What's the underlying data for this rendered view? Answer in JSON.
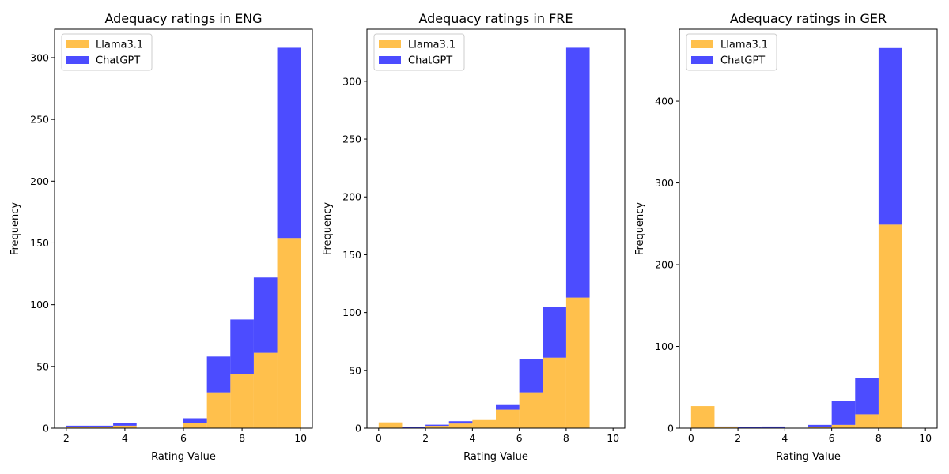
{
  "colors": {
    "llama": "#ffa500",
    "chatgpt": "#0000ff",
    "legend_border": "#cccccc"
  },
  "chart_data": [
    {
      "type": "bar",
      "title": "Adequacy ratings in ENG",
      "xlabel": "Rating Value",
      "ylabel": "Frequency",
      "xlim": [
        1.6,
        10.4
      ],
      "ylim": [
        0,
        323
      ],
      "xticks": [
        2,
        4,
        6,
        8,
        10
      ],
      "yticks": [
        0,
        50,
        100,
        150,
        200,
        250,
        300
      ],
      "bin_edges": [
        2.0,
        2.8,
        3.6,
        4.4,
        5.2,
        6.0,
        6.8,
        7.6,
        8.4,
        9.2,
        10.0
      ],
      "legend_position": "upper left",
      "series": [
        {
          "name": "Llama3.1",
          "color": "#ffa500",
          "values": [
            1,
            1,
            2,
            0,
            0,
            4,
            29,
            44,
            61,
            154
          ]
        },
        {
          "name": "ChatGPT",
          "color": "#0000ff",
          "values": [
            1,
            1,
            2,
            0,
            0,
            4,
            29,
            44,
            61,
            154
          ]
        }
      ]
    },
    {
      "type": "bar",
      "title": "Adequacy ratings in FRE",
      "xlabel": "Rating Value",
      "ylabel": "Frequency",
      "xlim": [
        -0.5,
        10.5
      ],
      "ylim": [
        0,
        345
      ],
      "xticks": [
        0,
        2,
        4,
        6,
        8,
        10
      ],
      "yticks": [
        0,
        50,
        100,
        150,
        200,
        250,
        300
      ],
      "bin_edges": [
        0,
        1,
        2,
        3,
        4,
        5,
        6,
        7,
        8,
        9,
        10
      ],
      "legend_position": "upper left",
      "series": [
        {
          "name": "Llama3.1",
          "color": "#ffa500",
          "values": [
            5,
            0,
            2,
            4,
            7,
            16,
            31,
            61,
            113,
            0
          ]
        },
        {
          "name": "ChatGPT",
          "color": "#0000ff",
          "values": [
            0,
            1,
            1,
            2,
            0,
            4,
            29,
            44,
            216,
            0
          ]
        }
      ]
    },
    {
      "type": "bar",
      "title": "Adequacy ratings in GER",
      "xlabel": "Rating Value",
      "ylabel": "Frequency",
      "xlim": [
        -0.5,
        10.5
      ],
      "ylim": [
        0,
        488
      ],
      "xticks": [
        0,
        2,
        4,
        6,
        8,
        10
      ],
      "yticks": [
        0,
        100,
        200,
        300,
        400
      ],
      "bin_edges": [
        0,
        1,
        2,
        3,
        4,
        5,
        6,
        7,
        8,
        9,
        10
      ],
      "legend_position": "upper left",
      "series": [
        {
          "name": "Llama3.1",
          "color": "#ffa500",
          "values": [
            27,
            1,
            0,
            0,
            0,
            1,
            4,
            17,
            249,
            0
          ]
        },
        {
          "name": "ChatGPT",
          "color": "#0000ff",
          "values": [
            0,
            1,
            1,
            2,
            0,
            3,
            29,
            44,
            216,
            0
          ]
        }
      ]
    }
  ]
}
